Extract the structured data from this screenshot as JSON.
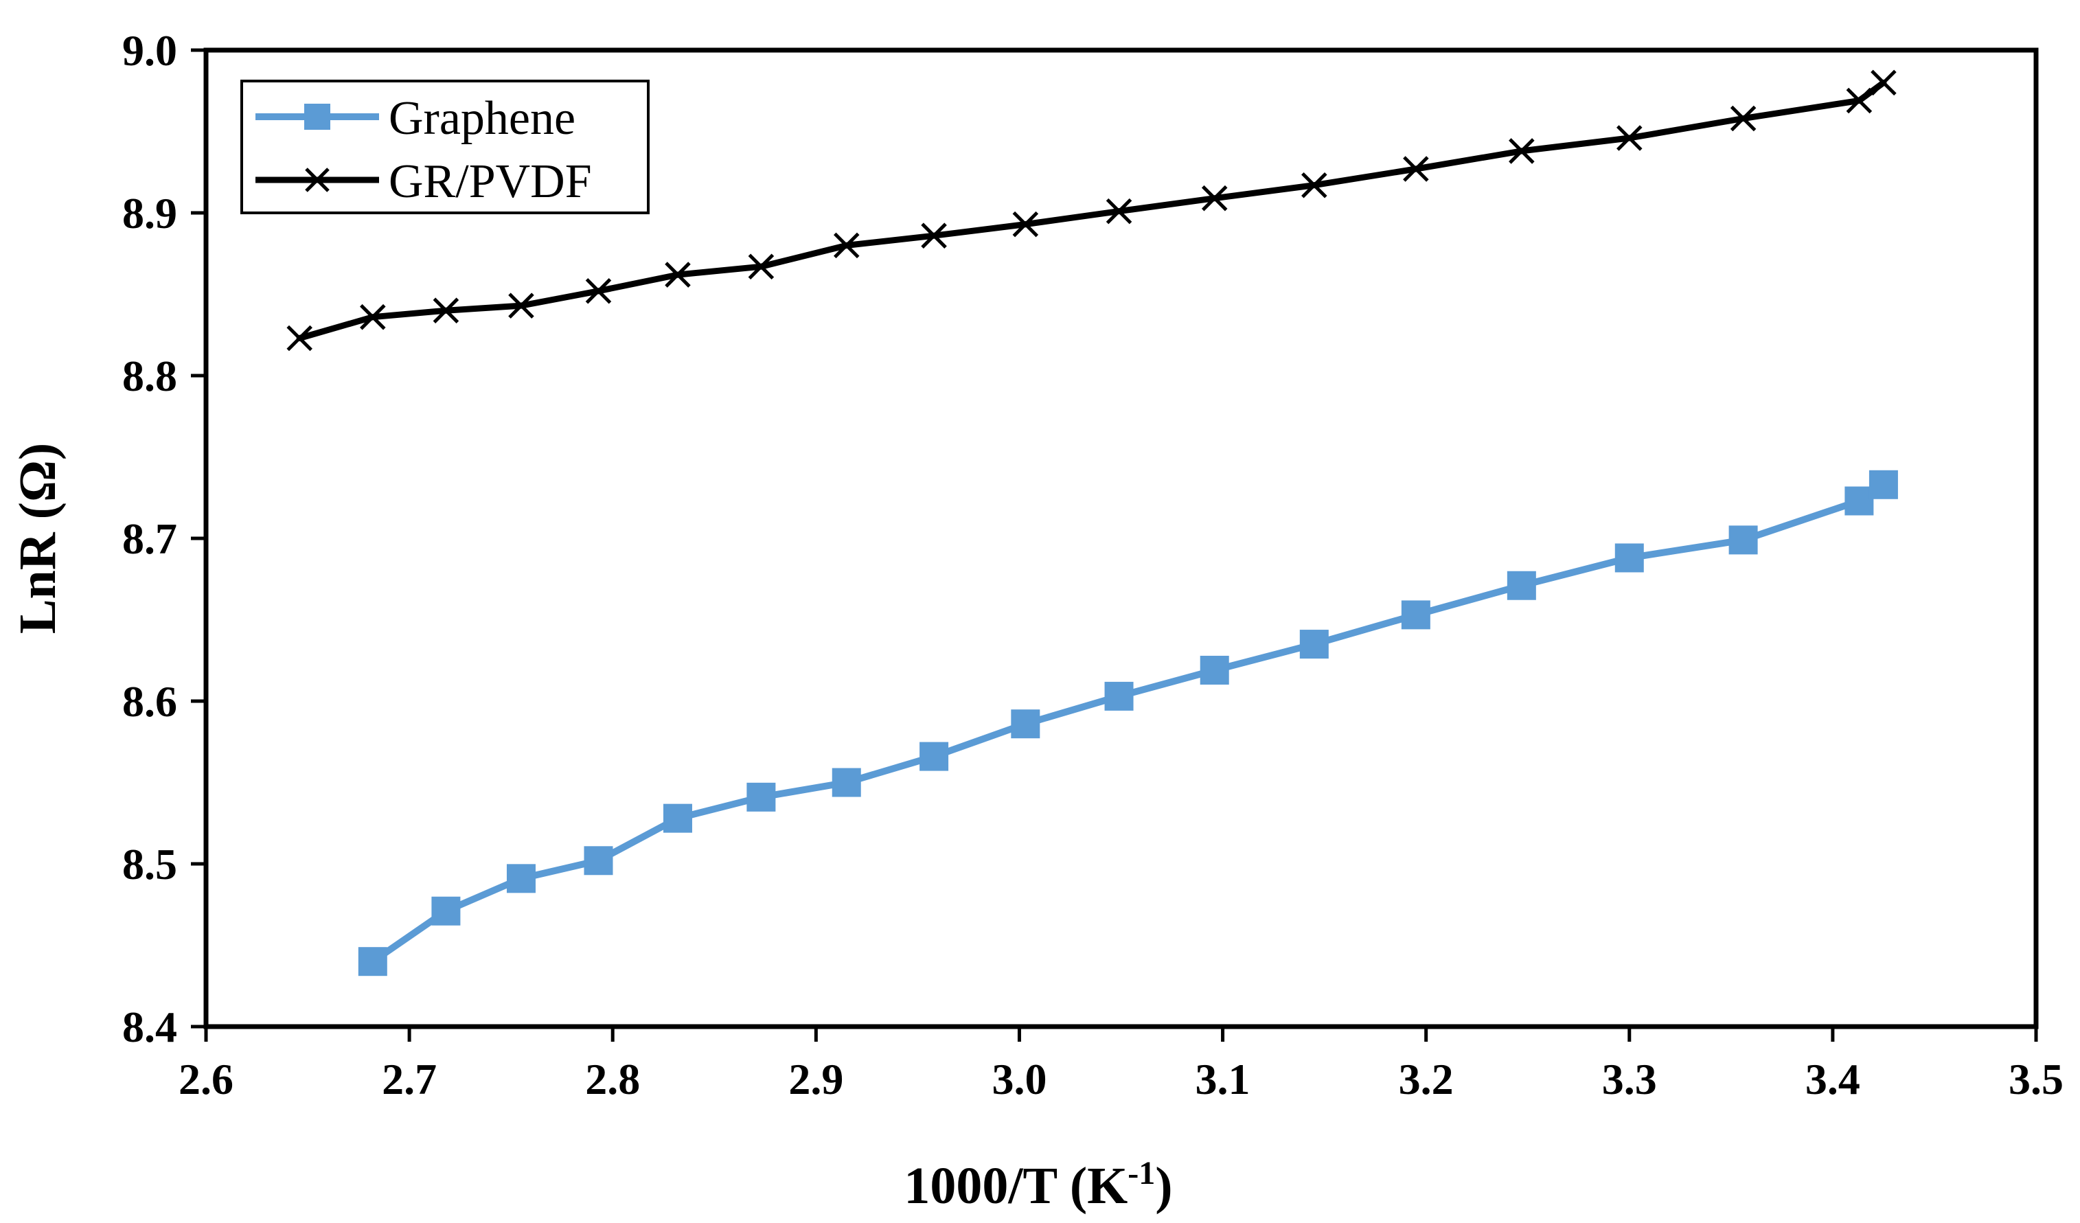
{
  "chart_data": {
    "type": "line",
    "title": "",
    "xlabel_main": "1000/T (K",
    "xlabel_sup": "-1",
    "xlabel_close": ")",
    "ylabel": "LnR (Ω)",
    "xlim": [
      2.6,
      3.5
    ],
    "ylim": [
      8.4,
      9.0
    ],
    "xticks": [
      "2.6",
      "2.7",
      "2.8",
      "2.9",
      "3.0",
      "3.1",
      "3.2",
      "3.3",
      "3.4",
      "3.5"
    ],
    "yticks": [
      "8.4",
      "8.5",
      "8.6",
      "8.7",
      "8.8",
      "8.9",
      "9.0"
    ],
    "grid": false,
    "legend_position": "top-left",
    "series": [
      {
        "name": "Graphene",
        "color": "#5b9bd5",
        "marker": "square",
        "x": [
          2.682,
          2.718,
          2.755,
          2.793,
          2.832,
          2.873,
          2.915,
          2.958,
          3.003,
          3.049,
          3.096,
          3.145,
          3.195,
          3.247,
          3.3,
          3.356,
          3.413,
          3.425
        ],
        "y": [
          8.44,
          8.471,
          8.491,
          8.502,
          8.528,
          8.541,
          8.55,
          8.566,
          8.586,
          8.603,
          8.619,
          8.635,
          8.653,
          8.671,
          8.688,
          8.699,
          8.723,
          8.733
        ]
      },
      {
        "name": "GR/PVDF",
        "color": "#000000",
        "marker": "x",
        "x": [
          2.646,
          2.682,
          2.718,
          2.755,
          2.793,
          2.832,
          2.873,
          2.915,
          2.958,
          3.003,
          3.049,
          3.096,
          3.145,
          3.195,
          3.247,
          3.3,
          3.356,
          3.413,
          3.425
        ],
        "y": [
          8.823,
          8.836,
          8.84,
          8.843,
          8.852,
          8.862,
          8.867,
          8.88,
          8.886,
          8.893,
          8.901,
          8.909,
          8.917,
          8.927,
          8.938,
          8.946,
          8.958,
          8.969,
          8.98
        ]
      }
    ]
  }
}
